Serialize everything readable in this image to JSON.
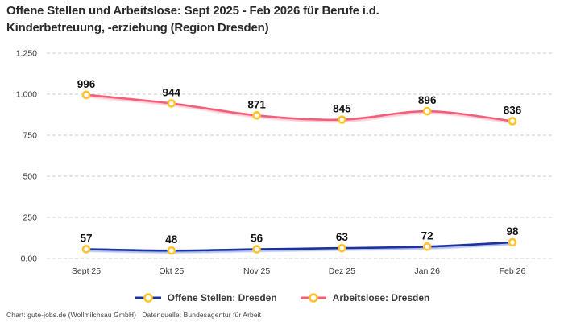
{
  "header": {
    "title_line1": "Offene Stellen und Arbeitslose: Sept 2025 - Feb 2026 für Berufe i.d.",
    "title_line2": "Kinderbetreuung, -erziehung (Region Dresden)"
  },
  "footer": {
    "credit": "Chart: gute-jobs.de (Wollmilchsau GmbH) | Datenquelle: Bundesagentur für Arbeit"
  },
  "chart_data": {
    "type": "line",
    "title": "Offene Stellen und Arbeitslose: Sept 2025 - Feb 2026 für Berufe i.d. Kinderbetreuung, -erziehung (Region Dresden)",
    "categories": [
      "Sept 25",
      "Okt 25",
      "Nov 25",
      "Dez 25",
      "Jan 26",
      "Feb 26"
    ],
    "series": [
      {
        "name": "Offene Stellen: Dresden",
        "values": [
          57,
          48,
          56,
          63,
          72,
          98
        ],
        "color": "#1d339c"
      },
      {
        "name": "Arbeitslose: Dresden",
        "values": [
          996,
          944,
          871,
          845,
          896,
          836
        ],
        "color": "#f25f79"
      }
    ],
    "marker_color": "#ffc42d",
    "marker_fill": "#ffffff",
    "grid_color": "#cdcdcd",
    "grid": "dashed-horizontal",
    "legend_position": "bottom",
    "ylim": [
      0,
      1250
    ],
    "yticks": [
      {
        "label": "0,00",
        "value": 0
      },
      {
        "label": "250",
        "value": 250
      },
      {
        "label": "500",
        "value": 500
      },
      {
        "label": "750",
        "value": 750
      },
      {
        "label": "1.000",
        "value": 1000
      },
      {
        "label": "1.250",
        "value": 1250
      }
    ]
  }
}
